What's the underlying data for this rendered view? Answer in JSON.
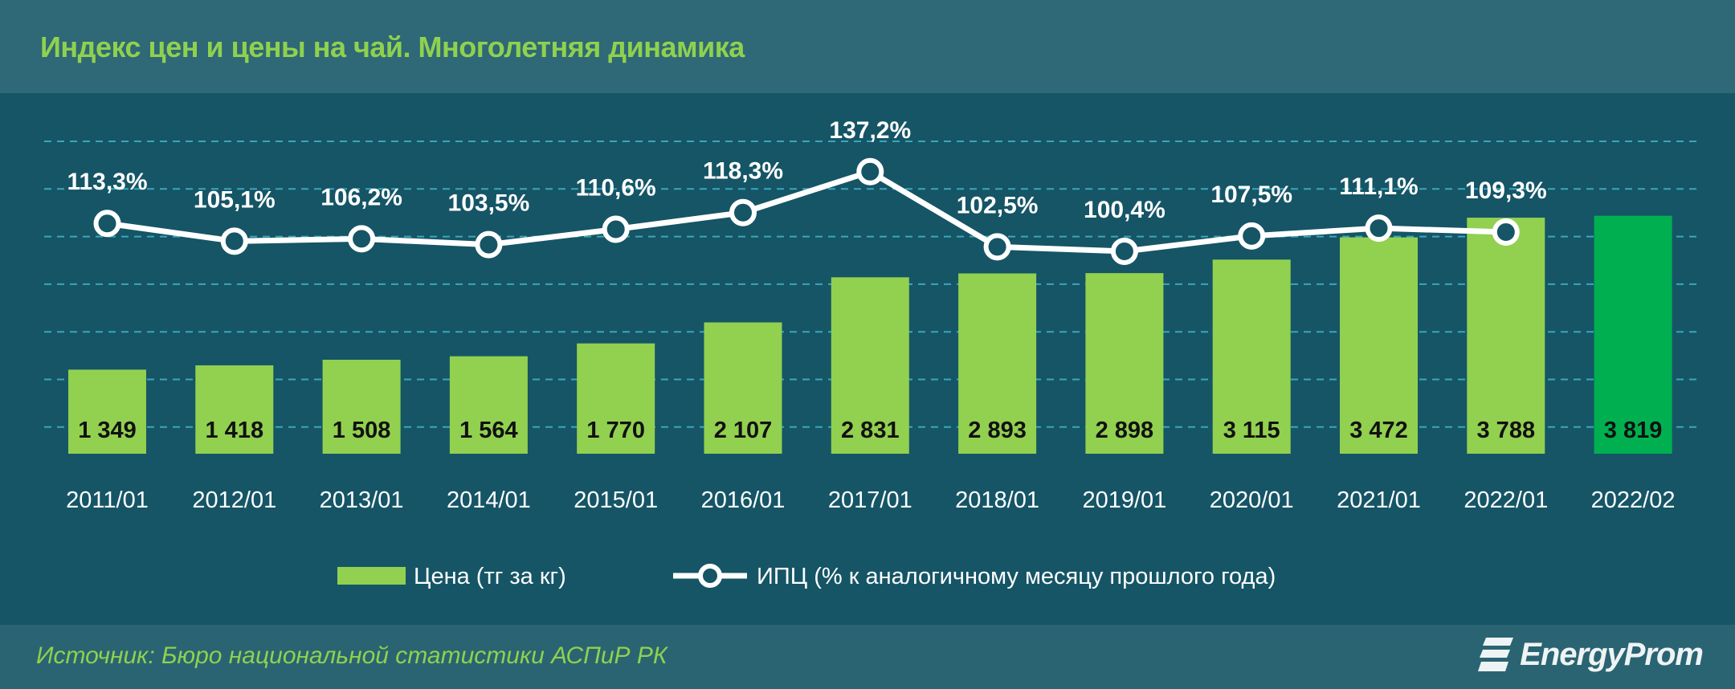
{
  "header": {
    "title": "Индекс цен и цены на чай. Многолетняя динамика"
  },
  "footer": {
    "source": "Источник: Бюро национальной статистики АСПиР РК",
    "logo": "EnergyProm"
  },
  "colors": {
    "bar": "#92d050",
    "bar_highlight": "#00b050",
    "line": "#ffffff",
    "grid": "#3aa6bb",
    "title": "#8fd14f"
  },
  "chart_data": {
    "type": "bar+line",
    "title": "Индекс цен и цены на чай. Многолетняя динамика",
    "categories": [
      "2011/01",
      "2012/01",
      "2013/01",
      "2014/01",
      "2015/01",
      "2016/01",
      "2017/01",
      "2018/01",
      "2019/01",
      "2020/01",
      "2021/01",
      "2022/01",
      "2022/02"
    ],
    "series": [
      {
        "name": "Цена (тг за кг)",
        "type": "bar",
        "values": [
          1349,
          1418,
          1508,
          1564,
          1770,
          2107,
          2831,
          2893,
          2898,
          3115,
          3472,
          3788,
          3819
        ],
        "labels": [
          "1 349",
          "1 418",
          "1 508",
          "1 564",
          "1 770",
          "2 107",
          "2 831",
          "2 893",
          "2 898",
          "3 115",
          "3 472",
          "3 788",
          "3 819"
        ]
      },
      {
        "name": "ИПЦ (% к аналогичному месяцу прошлого года)",
        "type": "line",
        "values": [
          113.3,
          105.1,
          106.2,
          103.5,
          110.6,
          118.3,
          137.2,
          102.5,
          100.4,
          107.5,
          111.1,
          109.3,
          null
        ],
        "labels": [
          "113,3%",
          "105,1%",
          "106,2%",
          "103,5%",
          "110,6%",
          "118,3%",
          "137,2%",
          "102,5%",
          "100,4%",
          "107,5%",
          "111,1%",
          "109,3%",
          ""
        ]
      }
    ],
    "grid": true,
    "legend": "bottom-center"
  }
}
